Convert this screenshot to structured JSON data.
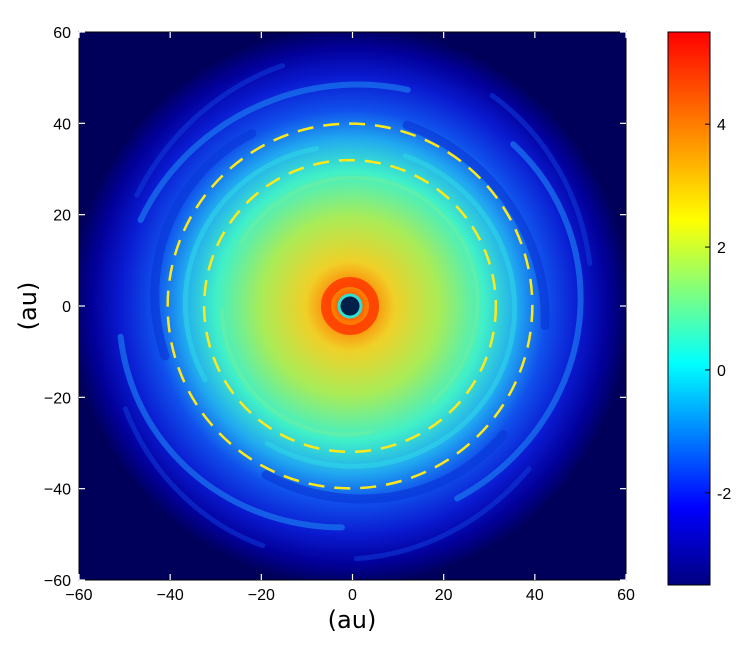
{
  "chart_data": {
    "type": "heatmap",
    "title": "",
    "xlabel": "(au)",
    "ylabel": "(au)",
    "xlim": [
      -60,
      60
    ],
    "ylim": [
      -60,
      60
    ],
    "xticks": [
      -60,
      -40,
      -20,
      0,
      20,
      40,
      60
    ],
    "yticks": [
      -60,
      -40,
      -20,
      0,
      20,
      40,
      60
    ],
    "xtick_labels": [
      "−60",
      "−40",
      "−20",
      "0",
      "20",
      "40",
      "60"
    ],
    "ytick_labels": [
      "−60",
      "−40",
      "−20",
      "0",
      "20",
      "40",
      "60"
    ],
    "colorbar": {
      "range": [
        -3.5,
        5.5
      ],
      "ticks": [
        -2,
        0,
        2,
        4
      ],
      "tick_labels": [
        "-2",
        "0",
        "2",
        "4"
      ],
      "colormap": [
        "#000080",
        "#0000ff",
        "#00ffff",
        "#ffff00",
        "#ff0000"
      ],
      "placement": "right"
    },
    "dashed_circles": [
      {
        "radius": 32,
        "color": "#ffe81a"
      },
      {
        "radius": 40,
        "color": "#ffe81a"
      }
    ],
    "background_color": "#00005a",
    "grid": false
  }
}
